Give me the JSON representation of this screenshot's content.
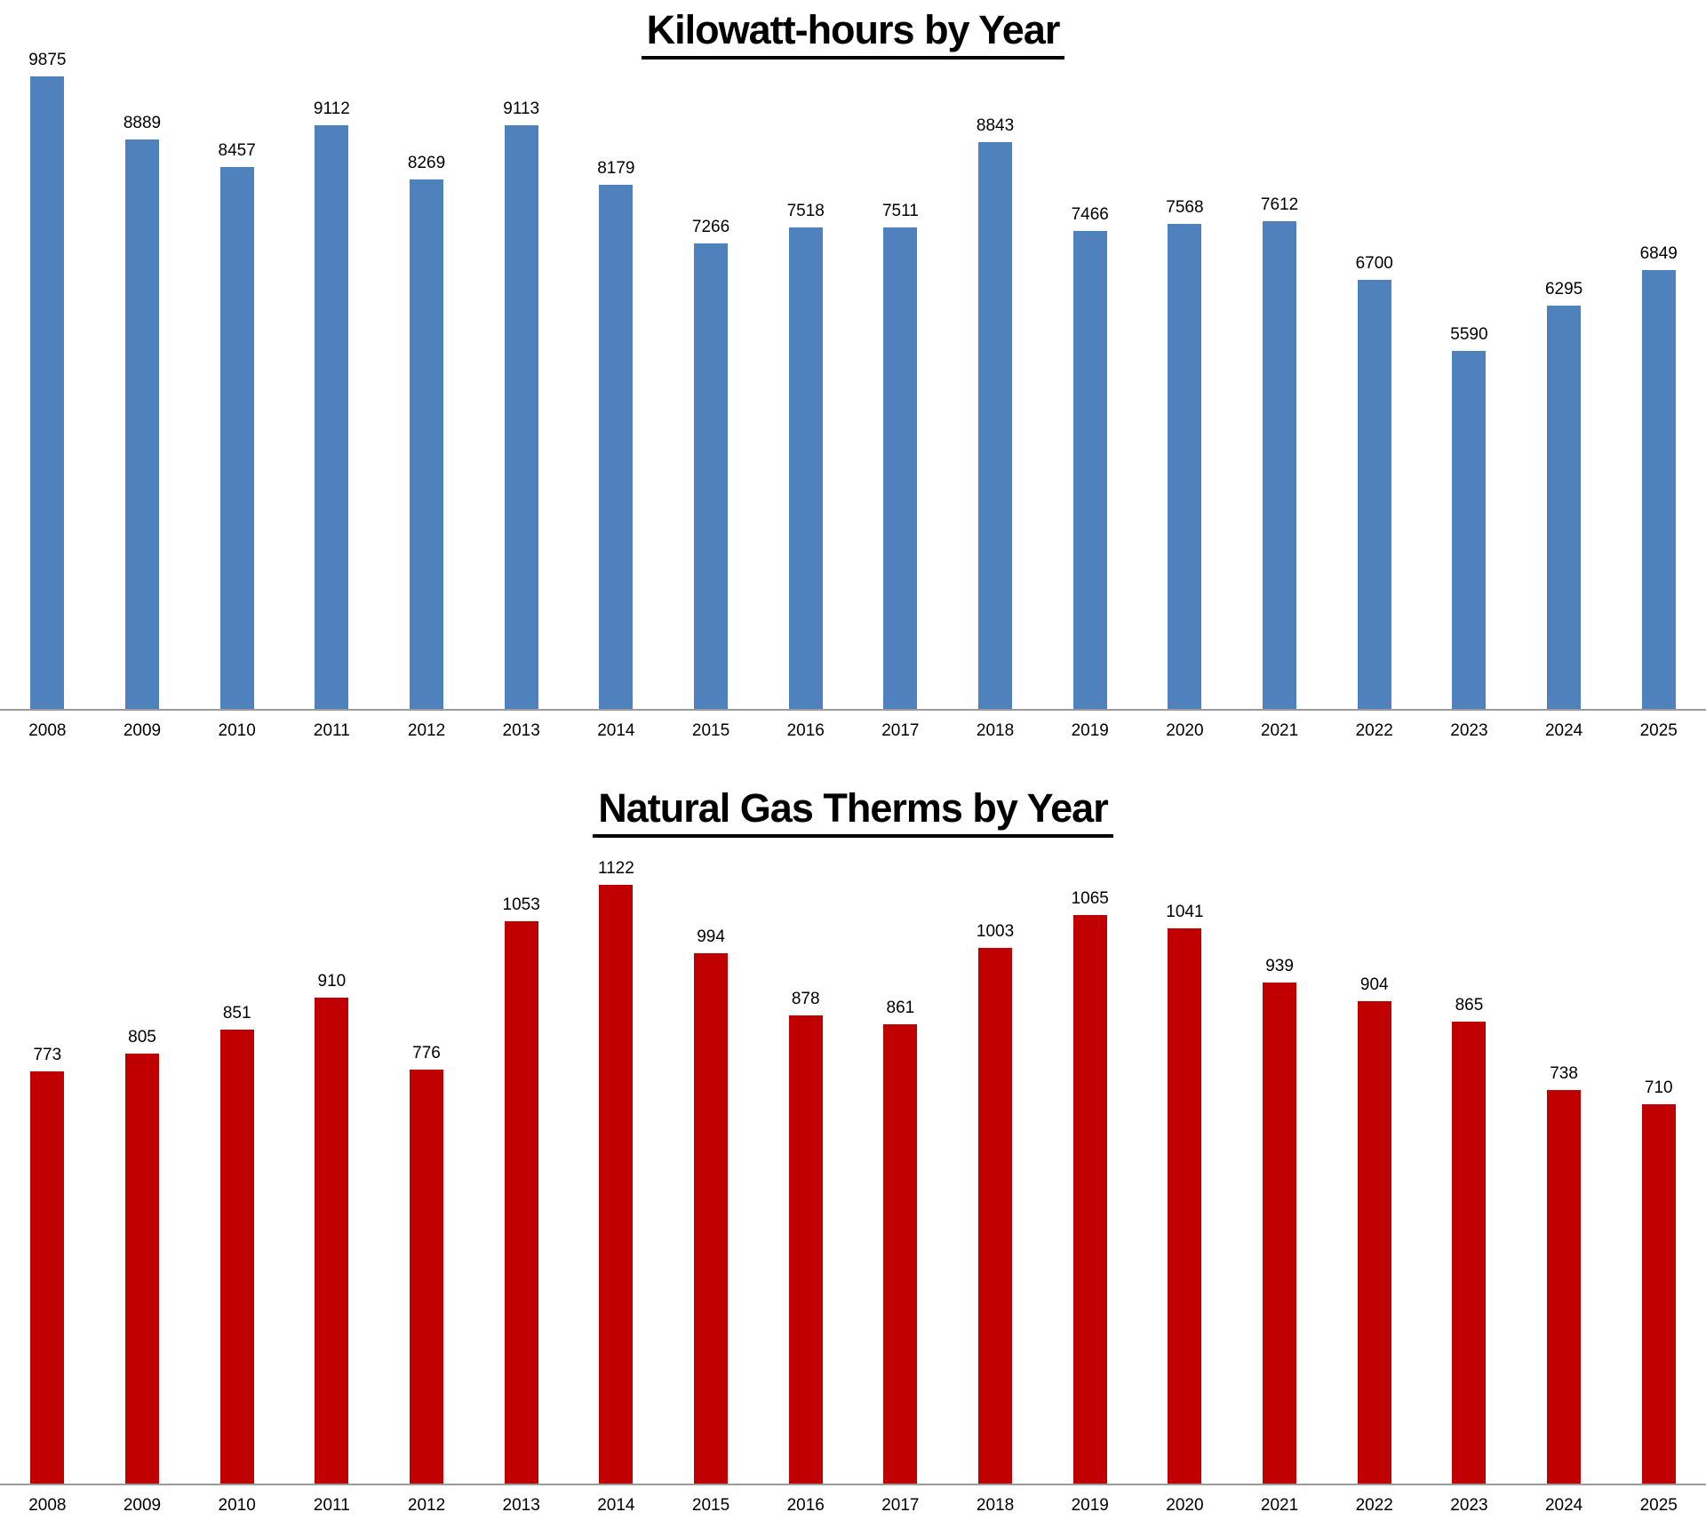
{
  "page": {
    "background": "#FFFFFF",
    "axis_line_color": "#9B9B9B",
    "text_color": "#000000"
  },
  "chart_data": [
    {
      "type": "bar",
      "title": "Kilowatt-hours by Year",
      "categories": [
        "2008",
        "2009",
        "2010",
        "2011",
        "2012",
        "2013",
        "2014",
        "2015",
        "2016",
        "2017",
        "2018",
        "2019",
        "2020",
        "2021",
        "2022",
        "2023",
        "2024",
        "2025"
      ],
      "values": [
        9875,
        8889,
        8457,
        9112,
        8269,
        9113,
        8179,
        7266,
        7518,
        7511,
        8843,
        7466,
        7568,
        7612,
        6700,
        5590,
        6295,
        6849
      ],
      "bar_color": "#4F81BD",
      "xlabel": "",
      "ylabel": "",
      "ylim": [
        0,
        10000
      ],
      "grid": false,
      "legend": false,
      "data_labels": true,
      "title_underlined": true
    },
    {
      "type": "bar",
      "title": "Natural Gas Therms by Year",
      "categories": [
        "2008",
        "2009",
        "2010",
        "2011",
        "2012",
        "2013",
        "2014",
        "2015",
        "2016",
        "2017",
        "2018",
        "2019",
        "2020",
        "2021",
        "2022",
        "2023",
        "2024",
        "2025"
      ],
      "values": [
        773,
        805,
        851,
        910,
        776,
        1053,
        1122,
        994,
        878,
        861,
        1003,
        1065,
        1041,
        939,
        904,
        865,
        738,
        710
      ],
      "bar_color": "#C00000",
      "xlabel": "",
      "ylabel": "",
      "ylim": [
        0,
        1150
      ],
      "grid": false,
      "legend": false,
      "data_labels": true,
      "title_underlined": true
    }
  ]
}
